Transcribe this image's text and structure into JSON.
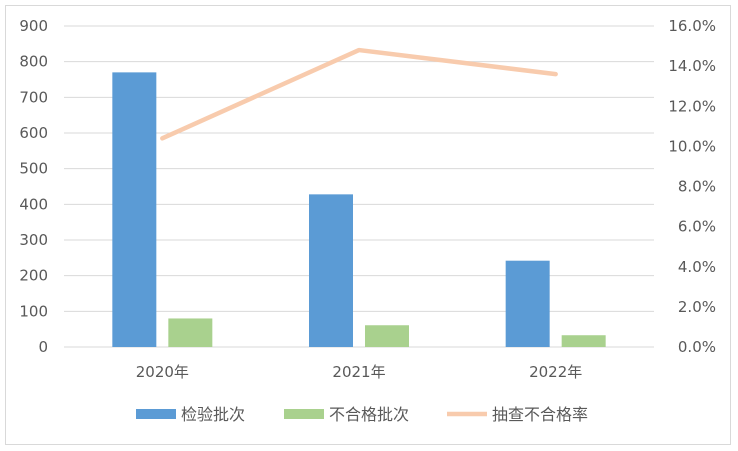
{
  "colors": {
    "inspections": "#5b9bd5",
    "failures": "#a9d18e",
    "rate": "#f8cbad",
    "grid": "#d9d9d9",
    "text": "#595959"
  },
  "chart_data": {
    "type": "bar",
    "categories": [
      "2020年",
      "2021年",
      "2022年"
    ],
    "series": [
      {
        "name": "检验批次",
        "type": "bar",
        "axis": "left",
        "values": [
          770,
          428,
          242
        ]
      },
      {
        "name": "不合格批次",
        "type": "bar",
        "axis": "left",
        "values": [
          80,
          61,
          33
        ]
      },
      {
        "name": "抽查不合格率",
        "type": "line",
        "axis": "right",
        "values": [
          0.104,
          0.148,
          0.136
        ]
      }
    ],
    "y_left": {
      "min": 0,
      "max": 900,
      "ticks": [
        "0",
        "100",
        "200",
        "300",
        "400",
        "500",
        "600",
        "700",
        "800",
        "900"
      ]
    },
    "y_right": {
      "min": 0,
      "max": 0.16,
      "ticks": [
        "0.0%",
        "2.0%",
        "4.0%",
        "6.0%",
        "8.0%",
        "10.0%",
        "12.0%",
        "14.0%",
        "16.0%"
      ]
    },
    "grid": true,
    "legend_position": "bottom"
  }
}
